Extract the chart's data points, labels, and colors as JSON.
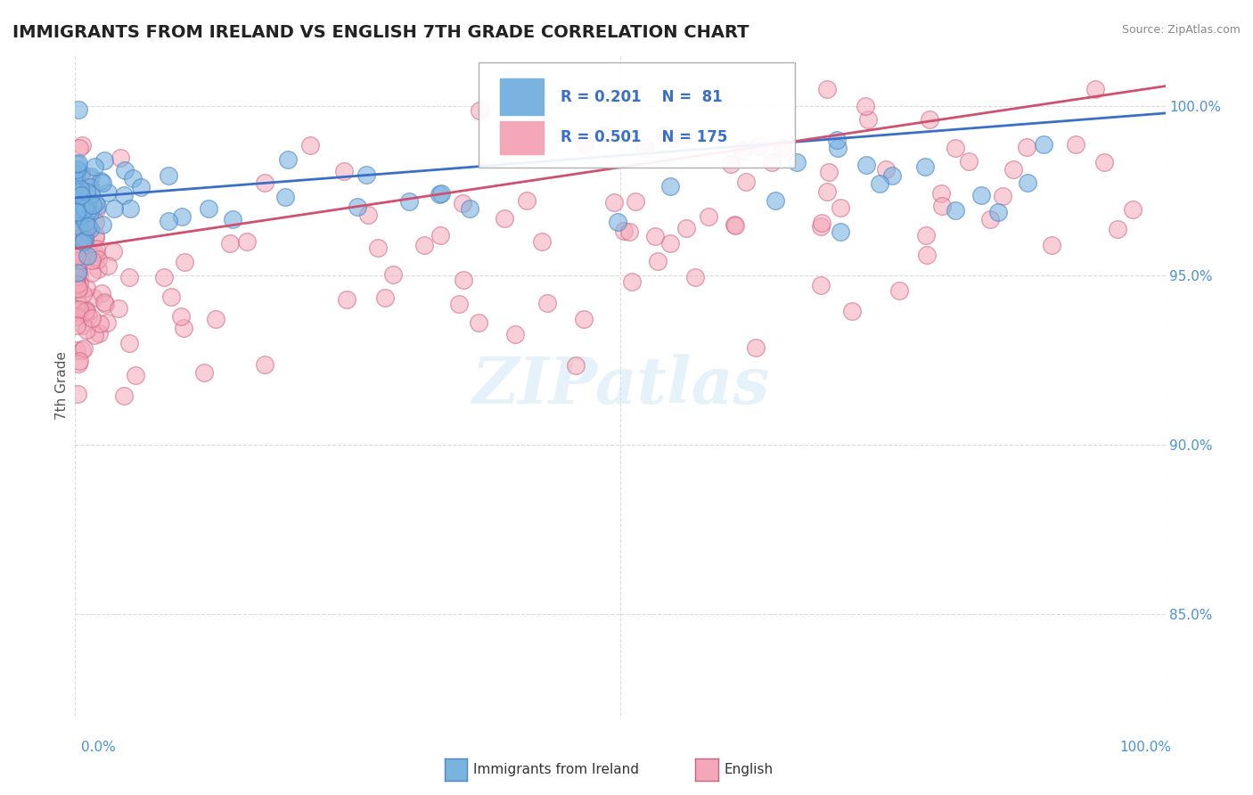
{
  "title": "IMMIGRANTS FROM IRELAND VS ENGLISH 7TH GRADE CORRELATION CHART",
  "source": "Source: ZipAtlas.com",
  "ylabel": "7th Grade",
  "y_tick_values": [
    0.85,
    0.9,
    0.95,
    1.0
  ],
  "y_tick_labels": [
    "85.0%",
    "90.0%",
    "95.0%",
    "100.0%"
  ],
  "x_lim": [
    0.0,
    1.0
  ],
  "y_lim": [
    0.82,
    1.015
  ],
  "blue_color": "#7ab3e0",
  "blue_edge_color": "#4a86c8",
  "pink_color": "#f4a7b9",
  "pink_edge_color": "#d06080",
  "blue_trend_color": "#3a6fc8",
  "pink_trend_color": "#d05070",
  "legend_R_blue": "R = 0.201",
  "legend_N_blue": "N =  81",
  "legend_R_pink": "R = 0.501",
  "legend_N_pink": "N = 175",
  "legend_label_blue": "Immigrants from Ireland",
  "legend_label_pink": "English",
  "watermark": "ZIPatlas",
  "background_color": "#ffffff",
  "blue_slope": 0.025,
  "blue_intercept": 0.973,
  "pink_slope": 0.048,
  "pink_intercept": 0.958
}
